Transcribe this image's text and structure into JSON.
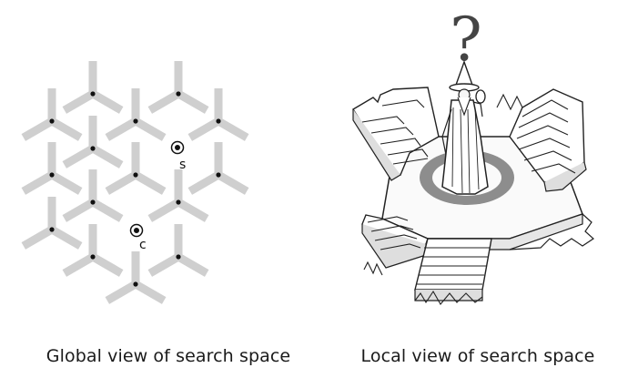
{
  "captions": {
    "global": "Global view of search space",
    "local": "Local view of search space"
  },
  "global_view": {
    "markers": {
      "s": "s",
      "c": "c"
    },
    "colors": {
      "lattice": "#cfcfcf",
      "node": "#111111"
    }
  },
  "local_view": {
    "question_mark": "?",
    "colors": {
      "target_ring": "#8d8d8d",
      "line": "#222222"
    }
  }
}
